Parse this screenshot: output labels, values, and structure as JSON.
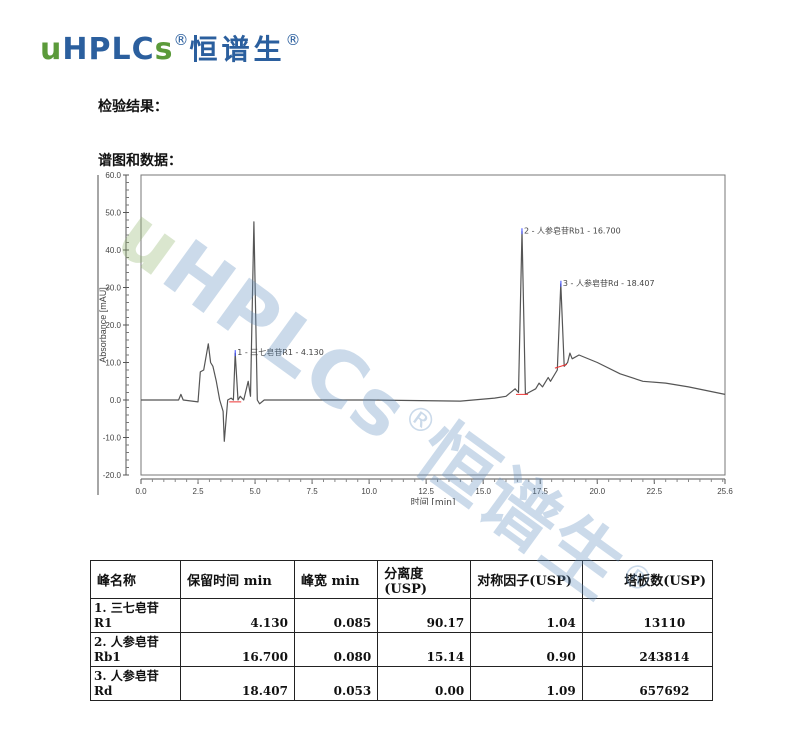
{
  "logo": {
    "u": "u",
    "hplc": "HPLC",
    "s": "s",
    "reg": "®",
    "cn": "恒谱生",
    "reg2": "®"
  },
  "headings": {
    "results": "检验结果：",
    "chromatogram": "谱图和数据："
  },
  "colors": {
    "logo_green": "#5b9a3a",
    "logo_blue": "#2b5f9e",
    "trace": "#555555"
  },
  "chart_data": {
    "type": "line",
    "xlabel": "时间 [min]",
    "ylabel": "Absorbance [mAU]",
    "xlim": [
      0,
      25.6
    ],
    "ylim": [
      -20,
      60
    ],
    "xticks": [
      "0.0",
      "2.5",
      "5.0",
      "7.5",
      "10.0",
      "12.5",
      "15.0",
      "17.5",
      "20.0",
      "22.5",
      "25.6"
    ],
    "yticks": [
      "60.0",
      "50.0",
      "40.0",
      "30.0",
      "20.0",
      "10.0",
      "0.0",
      "-10.0",
      "-20.0"
    ],
    "grid": false,
    "series": [
      {
        "x": [
          0,
          1.65,
          1.75,
          1.85,
          2.5,
          2.6,
          2.75,
          2.95,
          3.05,
          3.15,
          3.3,
          3.45,
          3.6,
          3.65,
          3.8,
          3.95,
          4.05,
          4.13,
          4.25,
          4.35,
          4.5,
          4.7,
          4.8,
          4.95,
          5.1,
          5.2,
          5.4,
          10,
          14,
          15.5,
          16,
          16.4,
          16.55,
          16.7,
          16.85,
          17,
          17.3,
          17.45,
          17.6,
          17.85,
          17.95,
          18.25,
          18.4,
          18.55,
          18.7,
          18.8,
          18.9,
          19.2,
          20,
          21,
          22,
          23,
          24,
          25.6
        ],
        "y": [
          0,
          0,
          1.5,
          0,
          -0.5,
          7.5,
          8,
          15,
          10,
          9,
          5,
          0,
          -3,
          -11,
          0,
          0.5,
          0,
          12.5,
          0,
          1,
          0,
          5,
          1,
          47.5,
          0,
          -1,
          0,
          0,
          -0.3,
          0.5,
          1,
          3,
          2,
          45,
          1.5,
          2,
          3,
          4.5,
          3.5,
          6,
          5,
          8,
          31,
          9,
          10,
          12.5,
          11,
          12,
          10,
          7,
          5,
          4.5,
          3.5,
          1.5
        ]
      }
    ],
    "annotations": [
      {
        "label": "1 - 三七皂苷R1 - 4.130",
        "x": 4.13,
        "y": 12.5
      },
      {
        "label": "2 - 人参皂苷Rb1 - 16.700",
        "x": 16.7,
        "y": 45
      },
      {
        "label": "3 - 人参皂苷Rd - 18.407",
        "x": 18.407,
        "y": 31
      }
    ]
  },
  "table": {
    "headers": [
      "峰名称",
      "保留时间 min",
      "峰宽 min",
      "分离度(USP)",
      "对称因子(USP)",
      "塔板数(USP)"
    ],
    "rows": [
      [
        "1. 三七皂苷 R1",
        "4.130",
        "0.085",
        "90.17",
        "1.04",
        "13110"
      ],
      [
        "2. 人参皂苷 Rb1",
        "16.700",
        "0.080",
        "15.14",
        "0.90",
        "243814"
      ],
      [
        "3. 人参皂苷 Rd",
        "18.407",
        "0.053",
        "0.00",
        "1.09",
        "657692"
      ]
    ]
  },
  "watermark": {
    "green": "u",
    "blue": "HPLCs",
    "reg": "®",
    "cn": "恒谱生",
    "reg2": "®"
  }
}
